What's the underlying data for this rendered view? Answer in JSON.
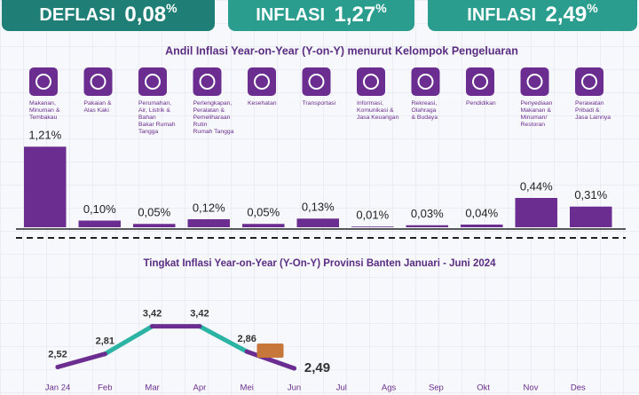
{
  "badges": [
    {
      "label": "DEFLASI",
      "value": "0,08",
      "unit": "%"
    },
    {
      "label": "INFLASI",
      "value": "1,27",
      "unit": "%"
    },
    {
      "label": "INFLASI",
      "value": "2,49",
      "unit": "%"
    }
  ],
  "chart_data": [
    {
      "type": "bar",
      "title": "Andil Inflasi Year-on-Year (Y-on-Y) menurut Kelompok Pengeluaran",
      "categories": [
        "Makanan,\nMinuman &\nTembakau",
        "Pakaian &\nAlas Kaki",
        "Perumahan,\nAir, Listrik &\nBahan\nBakar Rumah\nTangga",
        "Perlengkapan,\nPeralatan &\nPemeliharaan\nRutin\nRumah Tangga",
        "Kesehatan",
        "Transportasi",
        "Informasi,\nKomunikasi &\nJasa Keuangan",
        "Rekreasi,\nOlahraga\n& Budaya",
        "Pendidikan",
        "Penyediaan\nMakanan &\nMinuman/\nRestoran",
        "Perawatan\nPribadi &\nJasa Lainnya"
      ],
      "values": [
        1.21,
        0.1,
        0.05,
        0.12,
        0.05,
        0.13,
        0.01,
        0.03,
        0.04,
        0.44,
        0.31
      ],
      "value_labels": [
        "1,21%",
        "0,10%",
        "0,05%",
        "0,12%",
        "0,05%",
        "0,13%",
        "0,01%",
        "0,03%",
        "0,04%",
        "0,44%",
        "0,31%"
      ],
      "color": "#6b2d8f"
    },
    {
      "type": "line",
      "title": "Tingkat Inflasi Year-on-Year (Y-On-Y) Provinsi Banten Januari - Juni 2024",
      "categories": [
        "Jan 24",
        "Feb",
        "Mar",
        "Apr",
        "Mei",
        "Jun",
        "Jul",
        "Ags",
        "Sep",
        "Okt",
        "Nov",
        "Des"
      ],
      "series": [
        {
          "color": "#6b2d8f",
          "segment_colors": [
            "#6b2d8f",
            "#2bb3a3"
          ],
          "values": [
            2.52,
            2.81,
            3.42,
            3.42,
            2.86,
            2.49,
            null,
            null,
            null,
            null,
            null,
            null
          ],
          "value_labels": [
            "2,52",
            "2,81",
            "3,42",
            "3,42",
            "2,86",
            "2,49",
            null,
            null,
            null,
            null,
            null,
            null
          ]
        }
      ]
    }
  ]
}
